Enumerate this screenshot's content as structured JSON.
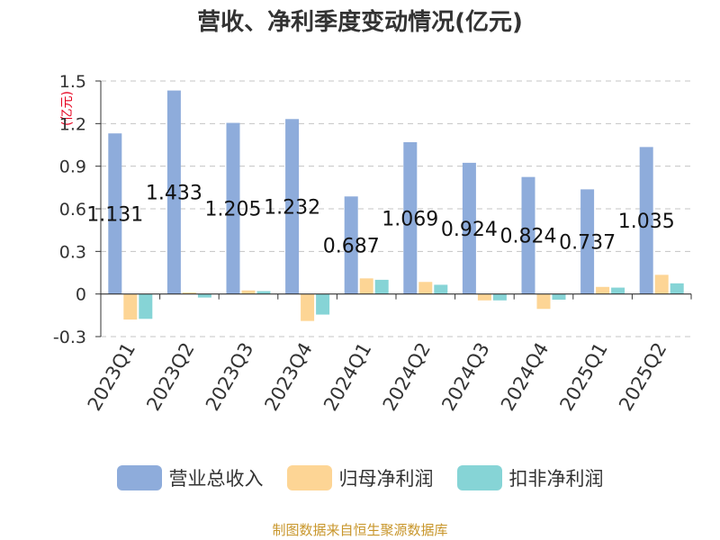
{
  "chart_data": {
    "type": "bar",
    "title": "营收、净利季度变动情况(亿元)",
    "ylabel": "(亿元)",
    "categories": [
      "2023Q1",
      "2023Q2",
      "2023Q3",
      "2023Q4",
      "2024Q1",
      "2024Q2",
      "2024Q3",
      "2024Q4",
      "2025Q1",
      "2025Q2"
    ],
    "ylim": [
      -0.3,
      1.5
    ],
    "yticks": [
      "1.5",
      "1.2",
      "0.9",
      "0.6",
      "0.3",
      "0",
      "-0.3"
    ],
    "grid": true,
    "legend_position": "bottom",
    "series": [
      {
        "name": "营业总收入",
        "color": "#8eacdb",
        "values": [
          1.131,
          1.433,
          1.205,
          1.232,
          0.687,
          1.069,
          0.924,
          0.824,
          0.737,
          1.035
        ],
        "labels": [
          "1.131",
          "1.433",
          "1.205",
          "1.232",
          "0.687",
          "1.069",
          "0.924",
          "0.824",
          "0.737",
          "1.035"
        ]
      },
      {
        "name": "归母净利润",
        "color": "#fdd595",
        "values": [
          -0.18,
          0.01,
          0.025,
          -0.19,
          0.11,
          0.085,
          -0.045,
          -0.105,
          0.05,
          0.135
        ]
      },
      {
        "name": "扣非净利润",
        "color": "#86d4d6",
        "values": [
          -0.175,
          -0.025,
          0.02,
          -0.145,
          0.1,
          0.065,
          -0.045,
          -0.04,
          0.045,
          0.075
        ]
      }
    ]
  },
  "footer": "制图数据来自恒生聚源数据库"
}
